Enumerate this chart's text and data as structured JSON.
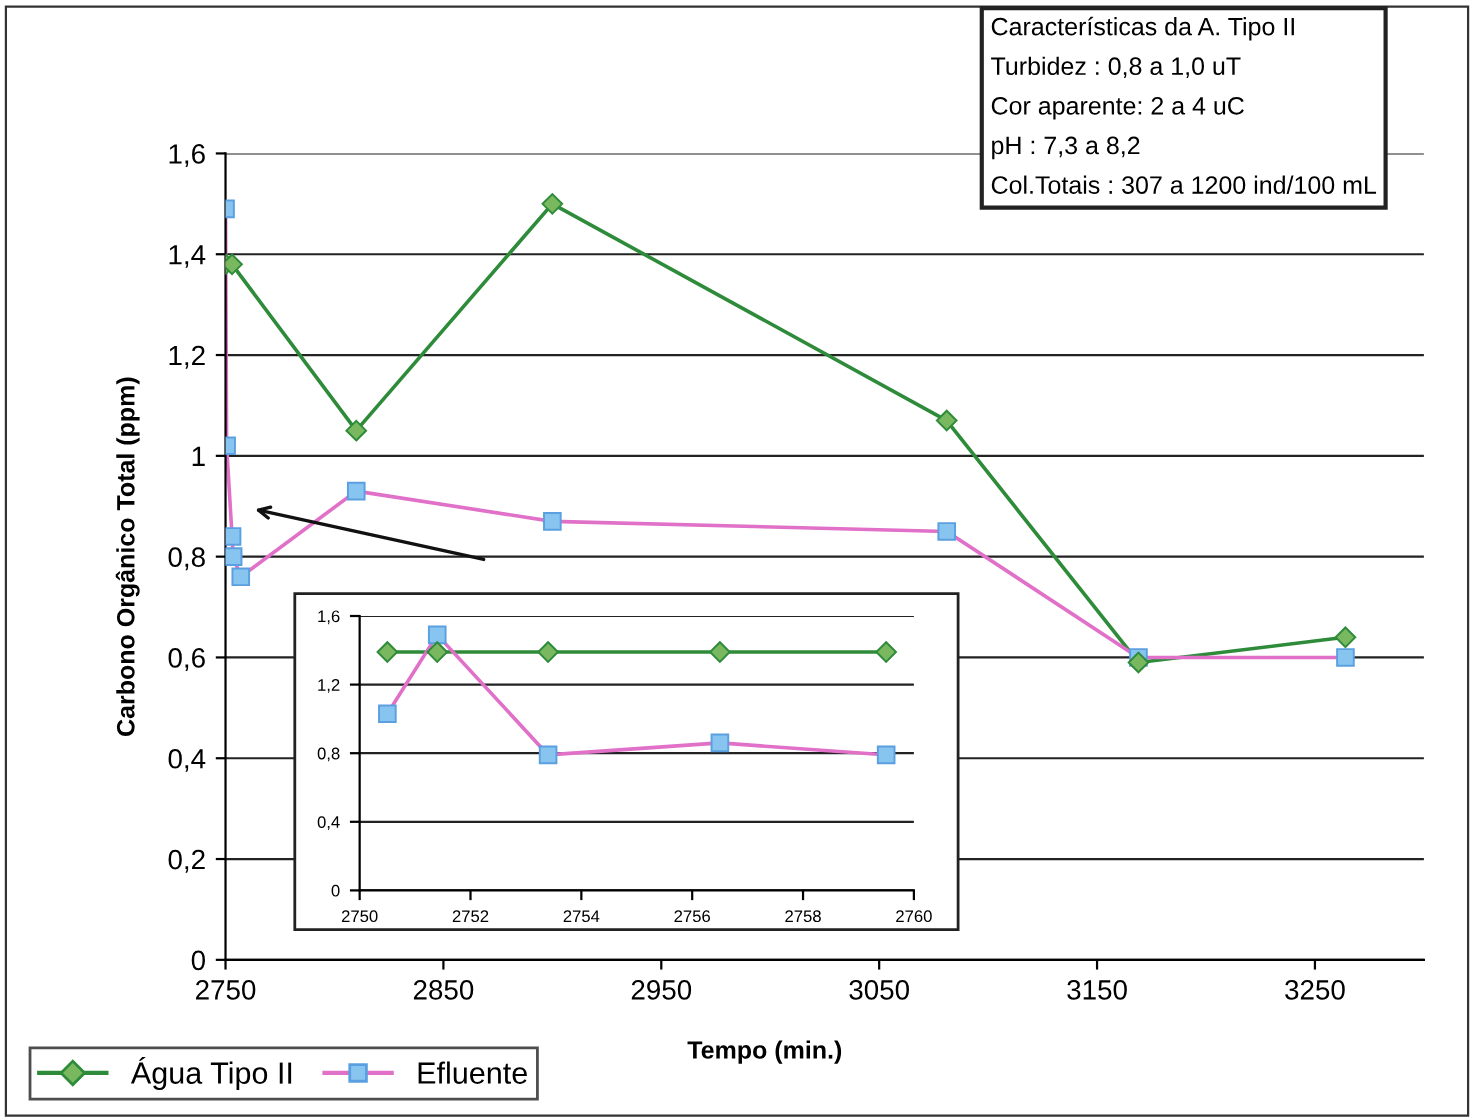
{
  "chart_data": [
    {
      "type": "line",
      "xlabel": "Tempo (min.)",
      "ylabel": "Carbono Orgânico Total (ppm)",
      "xlim": [
        2750,
        3300
      ],
      "xticks": [
        2750,
        2850,
        2950,
        3050,
        3150,
        3250
      ],
      "ylim": [
        0,
        1.6
      ],
      "yticks": [
        {
          "value": 0,
          "label": "0"
        },
        {
          "value": 0.2,
          "label": "0,2"
        },
        {
          "value": 0.4,
          "label": "0,4"
        },
        {
          "value": 0.6,
          "label": "0,6"
        },
        {
          "value": 0.8,
          "label": "0,8"
        },
        {
          "value": 1,
          "label": "1"
        },
        {
          "value": 1.2,
          "label": "1,2"
        },
        {
          "value": 1.4,
          "label": "1,4"
        },
        {
          "value": 1.6,
          "label": "1,6"
        }
      ],
      "grid": "y",
      "legend": "bottom left",
      "series": [
        {
          "name": "Água Tipo II",
          "color": "#2e8b3a",
          "marker": "diamond",
          "x": [
            2750,
            2753,
            2810,
            2900,
            3081,
            3169,
            3264
          ],
          "values": [
            1.38,
            1.38,
            1.05,
            1.5,
            1.07,
            0.59,
            0.64
          ]
        },
        {
          "name": "Efluente",
          "color": "#e070c8",
          "marker": "square",
          "x": [
            2750,
            2750.5,
            2753,
            2753.5,
            2757,
            2810,
            2900,
            3081,
            3169,
            3264
          ],
          "values": [
            1.49,
            1.02,
            0.84,
            0.8,
            0.76,
            0.93,
            0.87,
            0.85,
            0.6,
            0.6
          ]
        }
      ],
      "annotations": [
        "Características da A. Tipo II",
        "Turbidez : 0,8 a 1,0 uT",
        "Cor aparente: 2 a 4 uC",
        "pH : 7,3 a 8,2",
        "Col.Totais : 307 a 1200 ind/100 mL"
      ]
    },
    {
      "type": "line",
      "xlim": [
        2750,
        2760
      ],
      "xticks": [
        2750,
        2752,
        2754,
        2756,
        2758,
        2760
      ],
      "ylim": [
        0,
        1.6
      ],
      "yticks": [
        {
          "value": 0,
          "label": "0"
        },
        {
          "value": 0.4,
          "label": "0,4"
        },
        {
          "value": 0.8,
          "label": "0,8"
        },
        {
          "value": 1.2,
          "label": "1,2"
        },
        {
          "value": 1.6,
          "label": "1,6"
        }
      ],
      "grid": "y",
      "series": [
        {
          "color": "#2e8b3a",
          "marker": "diamond",
          "x": [
            2750.5,
            2751.4,
            2753.4,
            2756.5,
            2759.5
          ],
          "values": [
            1.39,
            1.39,
            1.39,
            1.39,
            1.39
          ]
        },
        {
          "color": "#e070c8",
          "marker": "square",
          "x": [
            2750.5,
            2751.4,
            2753.4,
            2756.5,
            2759.5
          ],
          "values": [
            1.03,
            1.49,
            0.79,
            0.86,
            0.79
          ]
        }
      ]
    }
  ]
}
